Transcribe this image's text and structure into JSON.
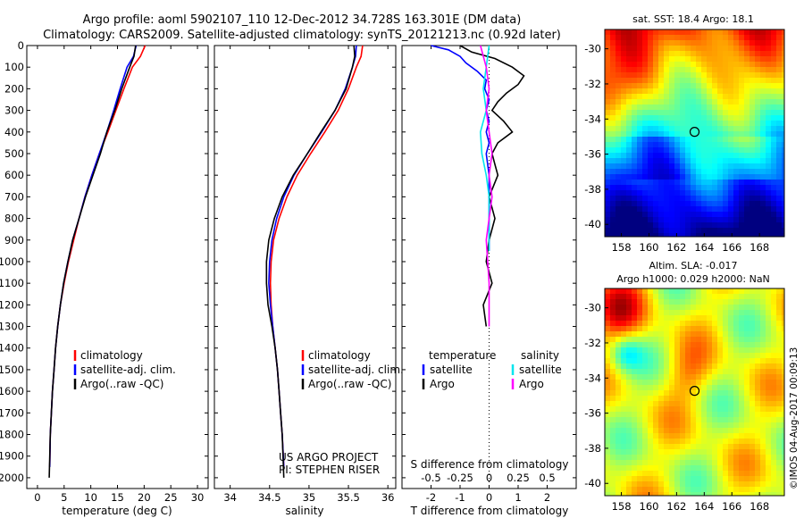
{
  "figure": {
    "title_line1": "Argo profile: aoml 5902107_110 12-Dec-2012 34.728S 163.301E (DM data)",
    "title_line2": "Climatology: CARS2009. Satellite-adjusted climatology: synTS_20121213.nc (0.92d later)",
    "credit": "©IMOS 04-Aug-2017 00:09:13",
    "colors": {
      "climatology": "#ff0000",
      "satellite": "#0000ff",
      "argo": "#000000",
      "sal_satellite": "#00e5ee",
      "sal_argo": "#ff00ff"
    }
  },
  "chart_data": [
    {
      "type": "line",
      "xlabel": "temperature (deg C)",
      "xlim": [
        -2,
        32
      ],
      "xticks": [
        0,
        5,
        10,
        15,
        20,
        25,
        30
      ],
      "ylim": [
        0,
        2050
      ],
      "yticks": [
        0,
        100,
        200,
        300,
        400,
        500,
        600,
        700,
        800,
        900,
        1000,
        1100,
        1200,
        1300,
        1400,
        1500,
        1600,
        1700,
        1800,
        1900,
        2000
      ],
      "legend": [
        "climatology",
        "satellite-adj. clim.",
        "Argo(..raw -QC)"
      ],
      "series": [
        {
          "name": "climatology",
          "color": "#ff0000",
          "x": [
            20.2,
            19.3,
            17.8,
            16.2,
            14.7,
            13.2,
            11.6,
            10.2,
            8.9,
            7.8,
            6.8,
            5.8,
            5.0,
            4.3,
            3.8,
            3.4,
            3.1,
            2.8,
            2.6,
            2.4,
            2.3
          ],
          "y": [
            0,
            50,
            100,
            200,
            300,
            400,
            500,
            600,
            700,
            800,
            900,
            1000,
            1100,
            1200,
            1300,
            1400,
            1500,
            1600,
            1700,
            1800,
            1950
          ]
        },
        {
          "name": "satellite-adj. clim.",
          "color": "#0000ff",
          "x": [
            18.5,
            18.0,
            16.8,
            15.5,
            14.3,
            13.0,
            11.6,
            10.2,
            8.9,
            7.8,
            6.6,
            5.7,
            4.9,
            4.3,
            3.8,
            3.4,
            3.1,
            2.8,
            2.6,
            2.4,
            2.3
          ],
          "y": [
            0,
            50,
            100,
            200,
            300,
            400,
            500,
            600,
            700,
            800,
            900,
            1000,
            1100,
            1200,
            1300,
            1400,
            1500,
            1600,
            1700,
            1800,
            1950
          ]
        },
        {
          "name": "Argo(..raw -QC)",
          "color": "#000000",
          "x": [
            18.4,
            18.1,
            17.3,
            15.8,
            14.5,
            13.0,
            11.8,
            10.4,
            9.0,
            7.8,
            6.6,
            5.7,
            4.9,
            4.3,
            3.8,
            3.4,
            3.1,
            2.8,
            2.6,
            2.4,
            2.2
          ],
          "y": [
            0,
            50,
            100,
            200,
            300,
            400,
            500,
            600,
            700,
            800,
            900,
            1000,
            1100,
            1200,
            1300,
            1400,
            1500,
            1600,
            1700,
            1800,
            2000
          ]
        }
      ]
    },
    {
      "type": "line",
      "xlabel": "salinity",
      "xlim": [
        33.8,
        36.1
      ],
      "xticks": [
        34,
        34.5,
        35,
        35.5,
        36
      ],
      "ylim": [
        0,
        2050
      ],
      "legend": [
        "climatology",
        "satellite-adj. clim.",
        "Argo(..raw -QC)"
      ],
      "annotation": [
        "US ARGO PROJECT",
        "PI: STEPHEN RISER"
      ],
      "series": [
        {
          "name": "climatology",
          "color": "#ff0000",
          "x": [
            35.68,
            35.66,
            35.6,
            35.5,
            35.37,
            35.2,
            35.02,
            34.85,
            34.72,
            34.62,
            34.55,
            34.52,
            34.51,
            34.52,
            34.54,
            34.57,
            34.6,
            34.62,
            34.64,
            34.66,
            34.68
          ],
          "y": [
            0,
            50,
            100,
            200,
            300,
            400,
            500,
            600,
            700,
            800,
            900,
            1000,
            1100,
            1200,
            1300,
            1400,
            1500,
            1600,
            1700,
            1800,
            1950
          ]
        },
        {
          "name": "satellite-adj. clim.",
          "color": "#0000ff",
          "x": [
            35.6,
            35.59,
            35.55,
            35.46,
            35.33,
            35.16,
            34.98,
            34.81,
            34.68,
            34.59,
            34.53,
            34.5,
            34.49,
            34.51,
            34.54,
            34.57,
            34.6,
            34.62,
            34.64,
            34.66,
            34.68
          ],
          "y": [
            0,
            50,
            100,
            200,
            300,
            400,
            500,
            600,
            700,
            800,
            900,
            1000,
            1100,
            1200,
            1300,
            1400,
            1500,
            1600,
            1700,
            1800,
            1950
          ]
        },
        {
          "name": "Argo(..raw -QC)",
          "color": "#000000",
          "x": [
            35.57,
            35.58,
            35.55,
            35.47,
            35.33,
            35.15,
            34.98,
            34.8,
            34.66,
            34.56,
            34.49,
            34.46,
            34.46,
            34.48,
            34.53,
            34.57,
            34.6,
            34.62,
            34.64,
            34.66,
            34.68
          ],
          "y": [
            0,
            50,
            100,
            200,
            300,
            400,
            500,
            600,
            700,
            800,
            900,
            1000,
            1100,
            1200,
            1300,
            1400,
            1500,
            1600,
            1700,
            1800,
            2000
          ]
        }
      ]
    },
    {
      "type": "line",
      "xlabel": "T difference from climatology",
      "xlabel_top": "S difference from climatology",
      "xlim": [
        -3,
        3
      ],
      "xticks": [
        -2,
        -1,
        0,
        1,
        2
      ],
      "xticklabels_top": [
        "-0.5",
        "-0.25",
        "0",
        "0.25",
        "0.5"
      ],
      "ylim": [
        0,
        2050
      ],
      "legend": [
        "temperature",
        "satellite",
        "Argo",
        "salinity",
        "satellite",
        "Argo"
      ],
      "series": [
        {
          "name": "satellite",
          "color": "#0000ff",
          "x": [
            -2.0,
            -1.4,
            -1.0,
            -0.8,
            -0.4,
            -0.1,
            -0.15,
            0.0,
            -0.1,
            0.0,
            -0.1,
            0.0,
            -0.1,
            0.0,
            0.0,
            0.0,
            0.0
          ],
          "y": [
            0,
            20,
            50,
            80,
            120,
            160,
            200,
            250,
            300,
            350,
            400,
            450,
            500,
            600,
            700,
            800,
            950
          ]
        },
        {
          "name": "Argo",
          "color": "#000000",
          "x": [
            -1.0,
            -0.6,
            0.2,
            0.8,
            1.2,
            1.0,
            0.6,
            0.3,
            0.1,
            0.5,
            0.8,
            0.3,
            0.1,
            0.2,
            0.3,
            0.0,
            0.2,
            0.0,
            -0.1,
            0.1,
            -0.2,
            -0.1
          ],
          "y": [
            0,
            30,
            60,
            100,
            140,
            180,
            220,
            260,
            300,
            350,
            400,
            450,
            500,
            550,
            600,
            700,
            800,
            900,
            1000,
            1100,
            1200,
            1300
          ]
        },
        {
          "name": "satellite",
          "color": "#00e5ee",
          "x": [
            0.0,
            -0.1,
            -0.2,
            -0.1,
            -0.3,
            -0.25,
            -0.1,
            0.0,
            0.0,
            0.0
          ],
          "y": [
            0,
            100,
            200,
            300,
            400,
            500,
            600,
            700,
            800,
            950
          ]
        },
        {
          "name": "Argo",
          "color": "#ff00ff",
          "x": [
            -0.3,
            -0.1,
            0.0,
            -0.1,
            0.0,
            0.1,
            0.0,
            0.1,
            0.0,
            -0.1,
            0.0,
            0.0
          ],
          "y": [
            0,
            100,
            200,
            300,
            400,
            500,
            600,
            700,
            800,
            900,
            1100,
            1300
          ]
        }
      ]
    },
    {
      "type": "heatmap",
      "title": "sat. SST: 18.4  Argo: 18.1",
      "xticks": [
        158,
        160,
        162,
        164,
        166,
        168
      ],
      "yticks": [
        -30,
        -32,
        -34,
        -36,
        -38,
        -40
      ],
      "xlim": [
        156.8,
        169.8
      ],
      "ylim": [
        -40.7,
        -28.9
      ],
      "marker": {
        "lon": 163.3,
        "lat": -34.73
      }
    },
    {
      "type": "heatmap",
      "title_line1": "Altim. SLA: -0.017",
      "title_line2": "Argo h1000: 0.029 h2000: NaN",
      "xticks": [
        158,
        160,
        162,
        164,
        166,
        168
      ],
      "yticks": [
        -30,
        -32,
        -34,
        -36,
        -38,
        -40
      ],
      "xlim": [
        156.8,
        169.8
      ],
      "ylim": [
        -40.7,
        -28.9
      ],
      "marker": {
        "lon": 163.3,
        "lat": -34.73
      }
    }
  ]
}
